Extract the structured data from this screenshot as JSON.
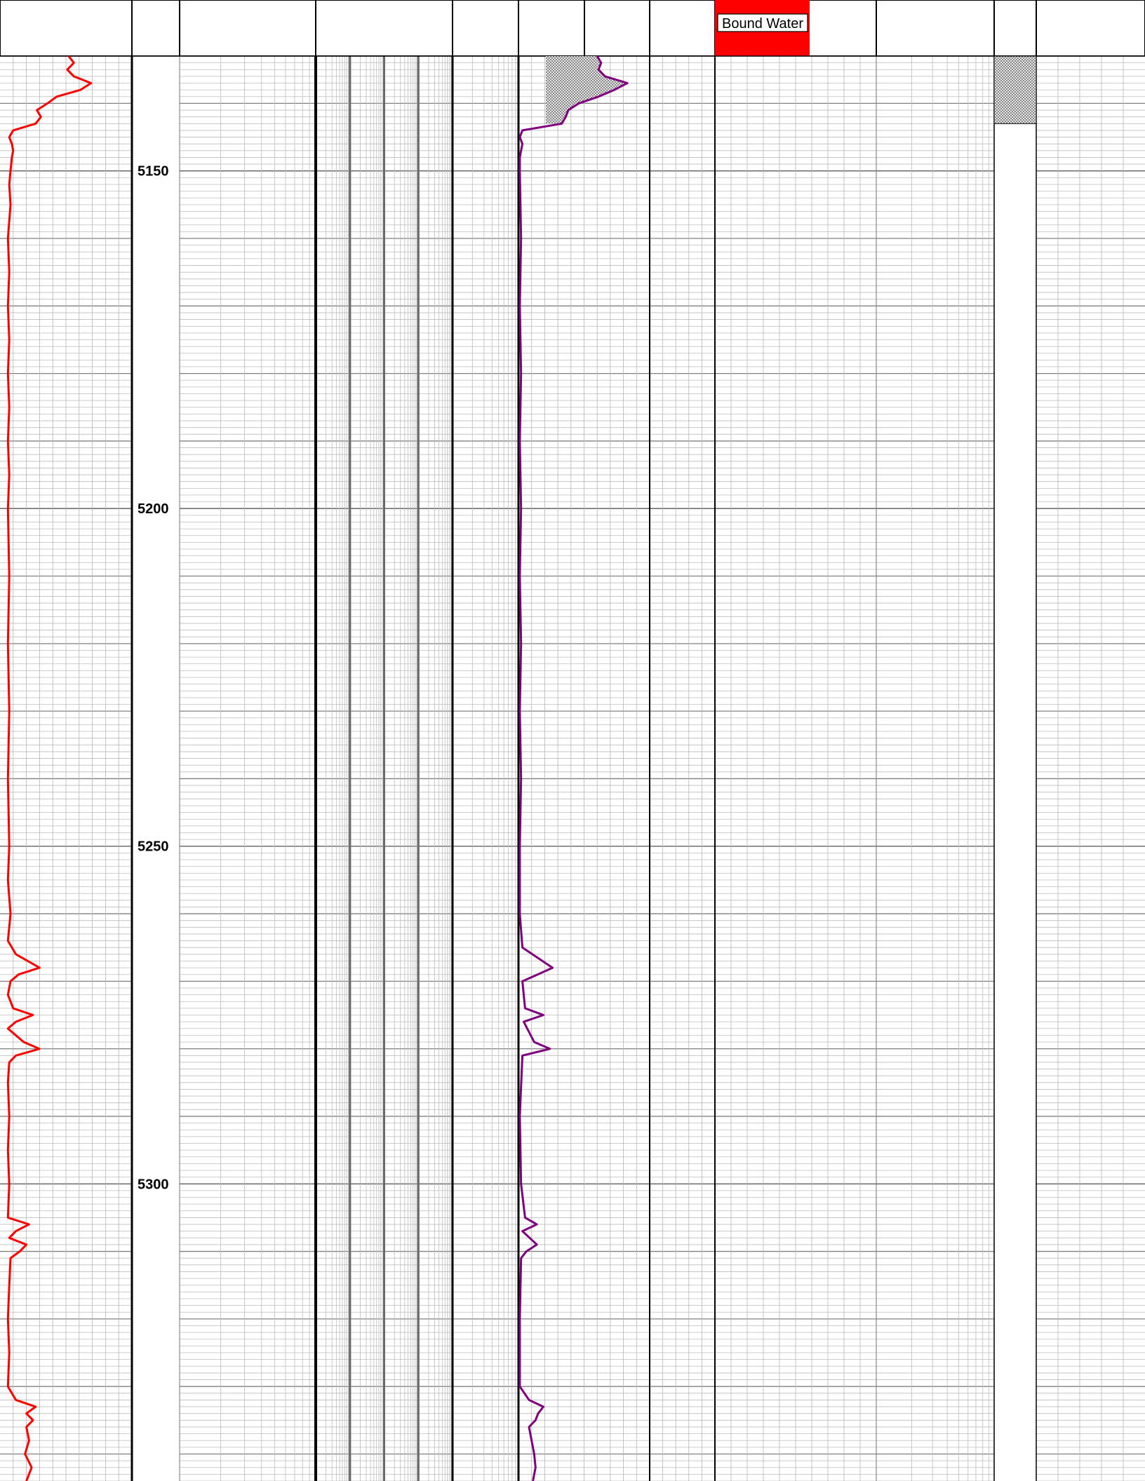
{
  "header": {
    "legend_label": "Bound Water",
    "legend_color": "#ff0000"
  },
  "chart_data": {
    "type": "line",
    "title": "",
    "depth_axis": {
      "label": "",
      "range": [
        5133,
        5344
      ],
      "tick_labels": [
        "5150",
        "5200",
        "5250",
        "5300"
      ],
      "tick_values": [
        5150,
        5200,
        5250,
        5300
      ]
    },
    "grid": true,
    "series": [
      {
        "track": "left",
        "color": "#ff0000",
        "value_range": [
          0,
          1
        ],
        "points": [
          [
            5133,
            0.52
          ],
          [
            5134,
            0.56
          ],
          [
            5135,
            0.51
          ],
          [
            5136,
            0.56
          ],
          [
            5137,
            0.69
          ],
          [
            5138,
            0.61
          ],
          [
            5139,
            0.43
          ],
          [
            5140,
            0.36
          ],
          [
            5141,
            0.28
          ],
          [
            5142,
            0.31
          ],
          [
            5143,
            0.27
          ],
          [
            5144,
            0.1
          ],
          [
            5145,
            0.07
          ],
          [
            5146,
            0.09
          ],
          [
            5147,
            0.1
          ],
          [
            5148,
            0.09
          ],
          [
            5150,
            0.08
          ],
          [
            5152,
            0.07
          ],
          [
            5155,
            0.08
          ],
          [
            5160,
            0.06
          ],
          [
            5165,
            0.07
          ],
          [
            5170,
            0.06
          ],
          [
            5175,
            0.07
          ],
          [
            5180,
            0.06
          ],
          [
            5185,
            0.07
          ],
          [
            5190,
            0.06
          ],
          [
            5195,
            0.07
          ],
          [
            5200,
            0.06
          ],
          [
            5210,
            0.07
          ],
          [
            5220,
            0.06
          ],
          [
            5230,
            0.07
          ],
          [
            5240,
            0.06
          ],
          [
            5250,
            0.07
          ],
          [
            5255,
            0.06
          ],
          [
            5260,
            0.08
          ],
          [
            5264,
            0.06
          ],
          [
            5266,
            0.12
          ],
          [
            5268,
            0.3
          ],
          [
            5269,
            0.14
          ],
          [
            5270,
            0.08
          ],
          [
            5272,
            0.06
          ],
          [
            5274,
            0.1
          ],
          [
            5275,
            0.25
          ],
          [
            5276,
            0.12
          ],
          [
            5277,
            0.06
          ],
          [
            5279,
            0.18
          ],
          [
            5280,
            0.3
          ],
          [
            5281,
            0.12
          ],
          [
            5282,
            0.07
          ],
          [
            5285,
            0.06
          ],
          [
            5290,
            0.07
          ],
          [
            5295,
            0.06
          ],
          [
            5300,
            0.07
          ],
          [
            5305,
            0.06
          ],
          [
            5306,
            0.22
          ],
          [
            5307,
            0.12
          ],
          [
            5308,
            0.07
          ],
          [
            5309,
            0.2
          ],
          [
            5310,
            0.15
          ],
          [
            5311,
            0.08
          ],
          [
            5315,
            0.07
          ],
          [
            5320,
            0.06
          ],
          [
            5325,
            0.07
          ],
          [
            5330,
            0.06
          ],
          [
            5332,
            0.12
          ],
          [
            5333,
            0.27
          ],
          [
            5334,
            0.2
          ],
          [
            5335,
            0.25
          ],
          [
            5336,
            0.2
          ],
          [
            5338,
            0.22
          ],
          [
            5340,
            0.19
          ],
          [
            5342,
            0.24
          ],
          [
            5344,
            0.2
          ]
        ]
      },
      {
        "track": "middle",
        "color": "#800080",
        "value_range": [
          0,
          1
        ],
        "fill": "stipple",
        "points": [
          [
            5133,
            0.6
          ],
          [
            5134,
            0.63
          ],
          [
            5135,
            0.61
          ],
          [
            5136,
            0.66
          ],
          [
            5137,
            0.83
          ],
          [
            5138,
            0.73
          ],
          [
            5139,
            0.61
          ],
          [
            5140,
            0.46
          ],
          [
            5141,
            0.38
          ],
          [
            5142,
            0.36
          ],
          [
            5143,
            0.33
          ],
          [
            5144,
            0.03
          ],
          [
            5145,
            0.01
          ],
          [
            5146,
            0.03
          ],
          [
            5147,
            0.02
          ],
          [
            5148,
            0.01
          ],
          [
            5150,
            0.01
          ],
          [
            5160,
            0.02
          ],
          [
            5170,
            0.01
          ],
          [
            5180,
            0.02
          ],
          [
            5190,
            0.01
          ],
          [
            5200,
            0.02
          ],
          [
            5210,
            0.01
          ],
          [
            5220,
            0.02
          ],
          [
            5230,
            0.01
          ],
          [
            5240,
            0.02
          ],
          [
            5250,
            0.01
          ],
          [
            5260,
            0.01
          ],
          [
            5265,
            0.03
          ],
          [
            5268,
            0.26
          ],
          [
            5270,
            0.03
          ],
          [
            5274,
            0.05
          ],
          [
            5275,
            0.19
          ],
          [
            5276,
            0.04
          ],
          [
            5279,
            0.12
          ],
          [
            5280,
            0.24
          ],
          [
            5281,
            0.03
          ],
          [
            5290,
            0.01
          ],
          [
            5300,
            0.02
          ],
          [
            5305,
            0.05
          ],
          [
            5306,
            0.14
          ],
          [
            5307,
            0.03
          ],
          [
            5309,
            0.14
          ],
          [
            5310,
            0.06
          ],
          [
            5311,
            0.02
          ],
          [
            5320,
            0.01
          ],
          [
            5330,
            0.01
          ],
          [
            5332,
            0.08
          ],
          [
            5333,
            0.19
          ],
          [
            5334,
            0.15
          ],
          [
            5335,
            0.13
          ],
          [
            5336,
            0.08
          ],
          [
            5338,
            0.1
          ],
          [
            5340,
            0.12
          ],
          [
            5342,
            0.13
          ],
          [
            5344,
            0.11
          ]
        ]
      }
    ],
    "stippled_interval_track_right": {
      "top": 5133,
      "bottom": 5143
    }
  }
}
